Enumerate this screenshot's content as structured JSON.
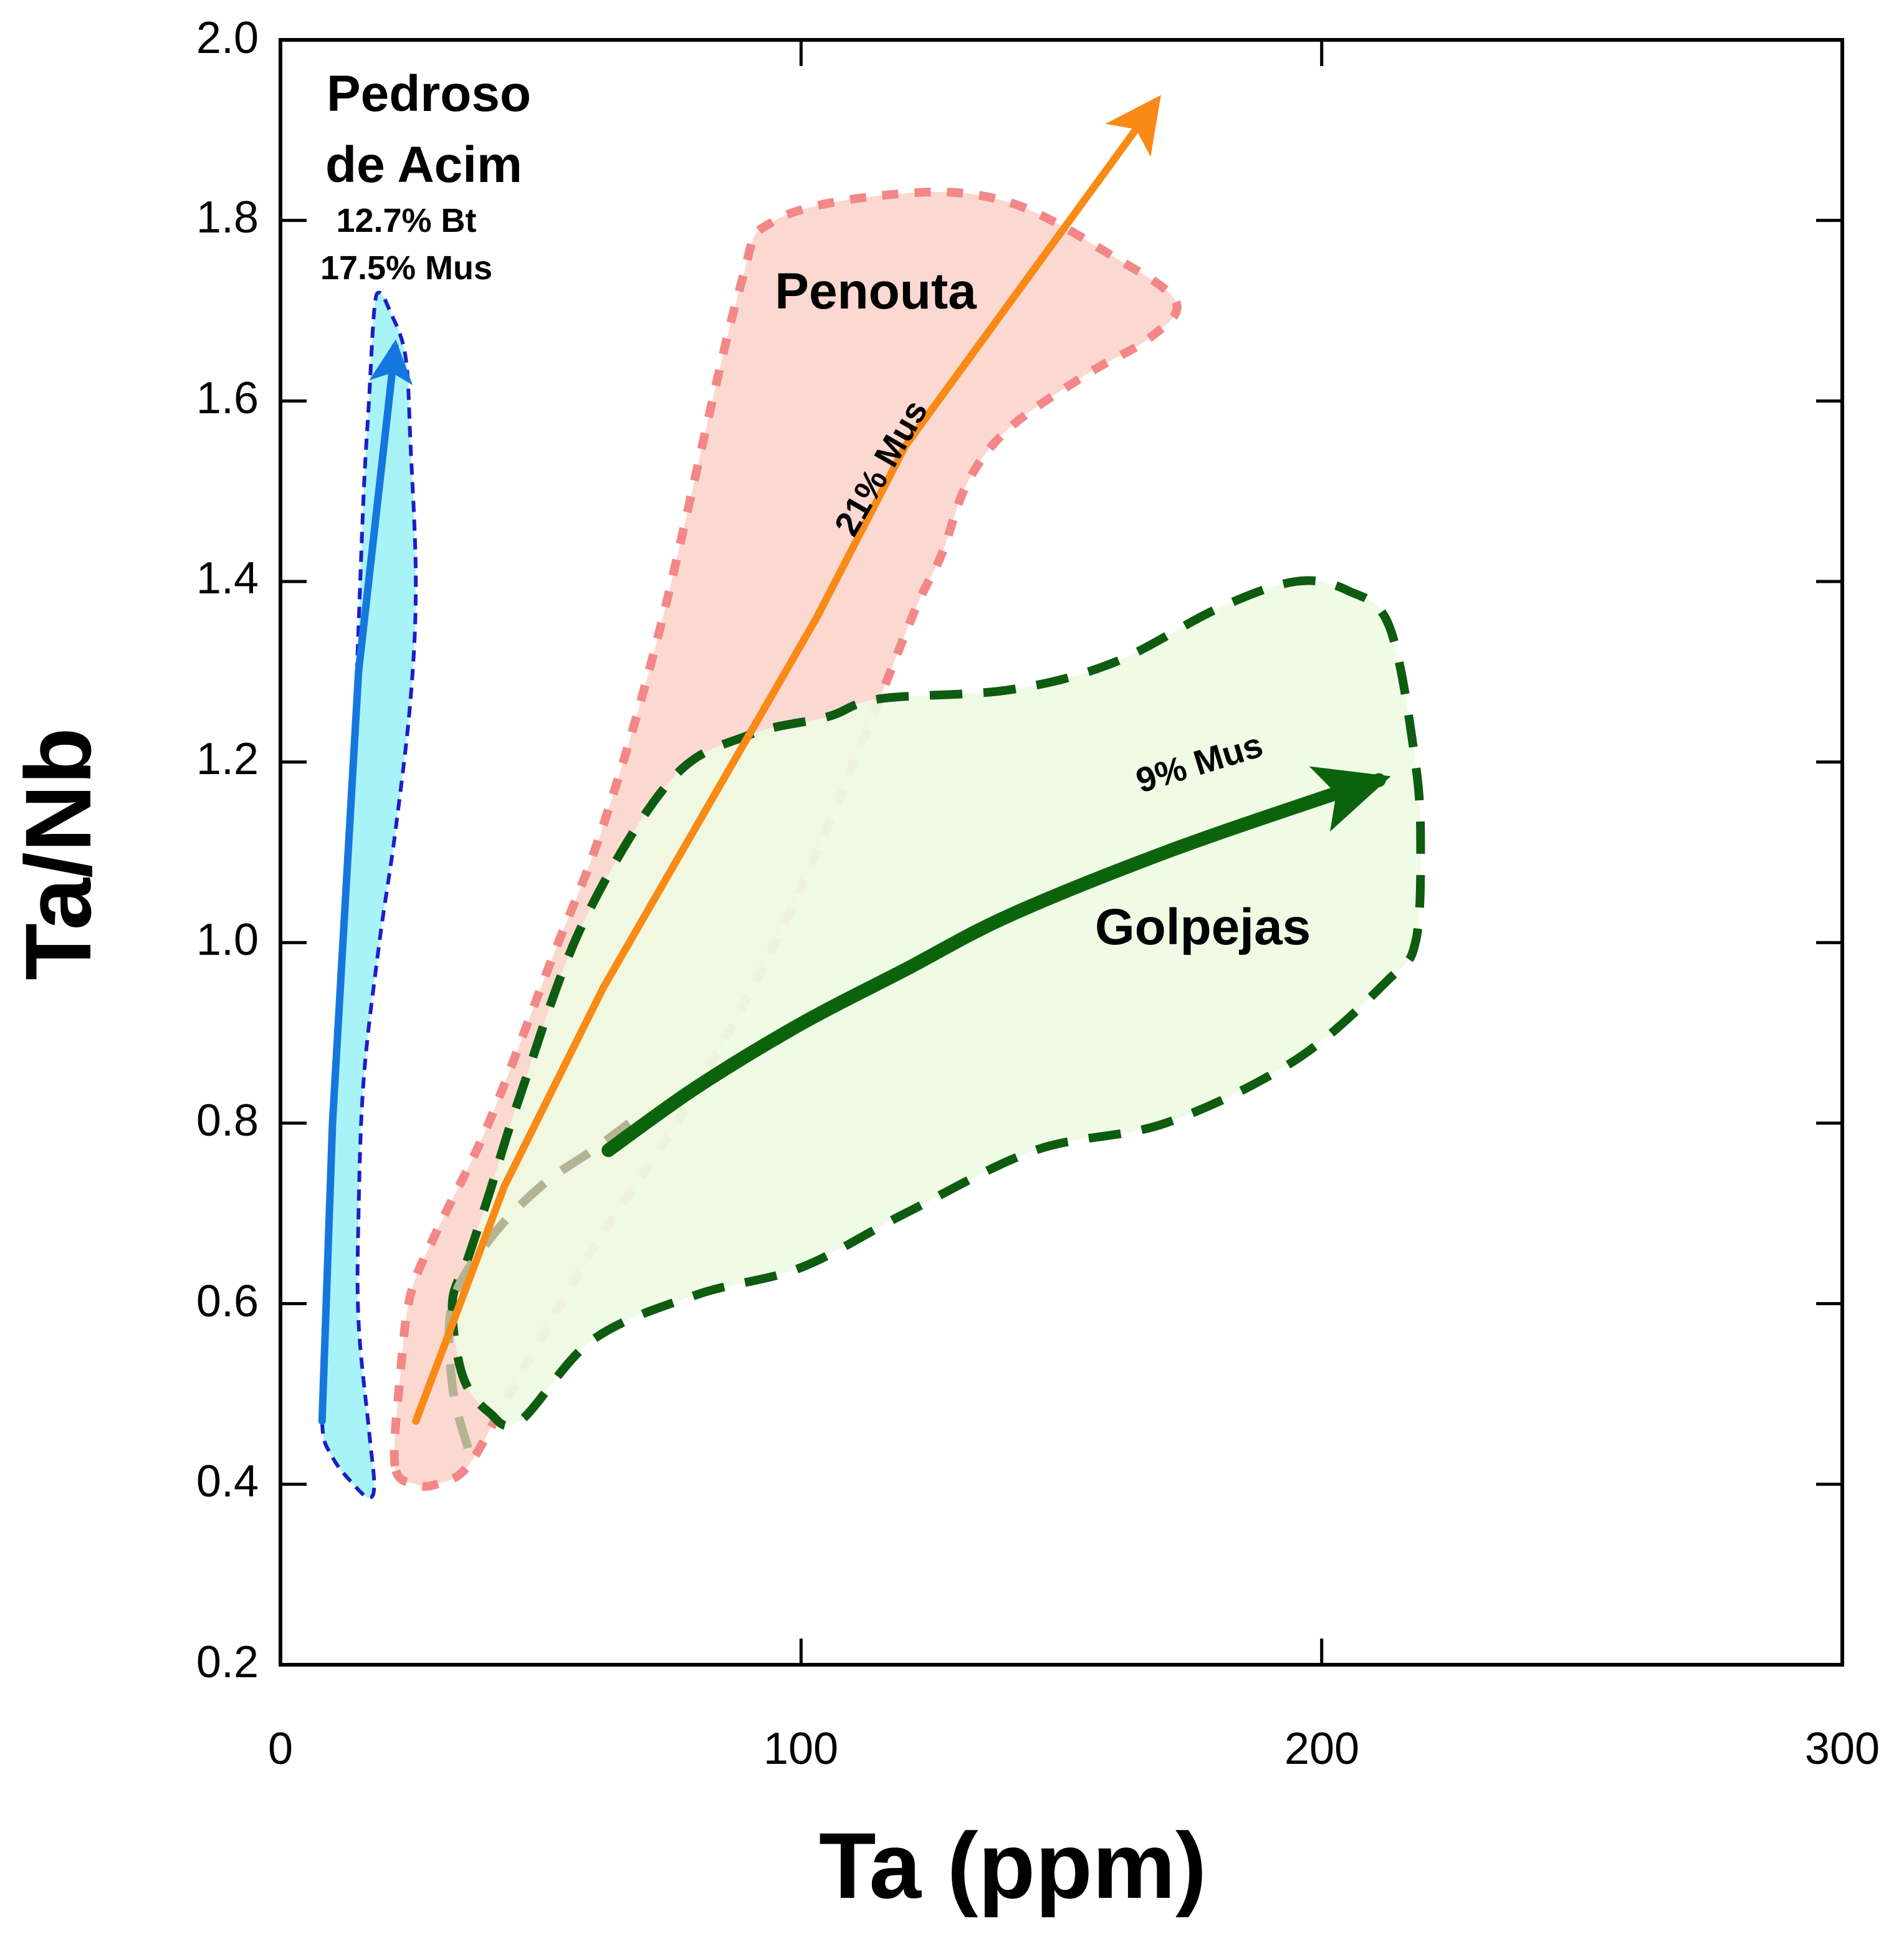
{
  "chart_data": {
    "type": "scatter",
    "title": "",
    "xlabel": "Ta (ppm)",
    "ylabel": "Ta/Nb",
    "xlim": [
      0,
      300
    ],
    "ylim": [
      0.2,
      2.0
    ],
    "xticks": [
      "0",
      "100",
      "200",
      "300"
    ],
    "yticks": [
      "0.2",
      "0.4",
      "0.6",
      "0.8",
      "1.0",
      "1.2",
      "1.4",
      "1.6",
      "1.8",
      "2.0"
    ],
    "grid": false,
    "colors": {
      "pedroso_fill": "#a8f3f7",
      "pedroso_border": "#1d1dc8",
      "pedroso_arrow": "#1577de",
      "penouta_fill": "#fbd9d1",
      "penouta_border": "#f38787",
      "penouta_arrow": "#f98a16",
      "golpejas_fill": "#effbe3",
      "golpejas_border": "#0d5c10",
      "golpejas_arrow": "#0b640b",
      "overlap_border": "#b4b493"
    },
    "fields": [
      {
        "name": "Pedroso de Acim",
        "label_line1": "Pedroso",
        "label_line2": "de Acim",
        "note_line1": "12.7% Bt",
        "note_line2": "17.5% Mus",
        "outline": [
          [
            8,
            0.47
          ],
          [
            9,
            0.6
          ],
          [
            10,
            0.75
          ],
          [
            11,
            0.9
          ],
          [
            12,
            1.0
          ],
          [
            14,
            1.2
          ],
          [
            15,
            1.35
          ],
          [
            16,
            1.5
          ],
          [
            17,
            1.6
          ],
          [
            18,
            1.7
          ],
          [
            19,
            1.72
          ],
          [
            21,
            1.7
          ],
          [
            24,
            1.65
          ],
          [
            25,
            1.55
          ],
          [
            26,
            1.4
          ],
          [
            25,
            1.27
          ],
          [
            22,
            1.12
          ],
          [
            19,
            1.0
          ],
          [
            16,
            0.85
          ],
          [
            15,
            0.7
          ],
          [
            15,
            0.58
          ],
          [
            17,
            0.46
          ],
          [
            18,
            0.4
          ],
          [
            17,
            0.385
          ],
          [
            14,
            0.4
          ],
          [
            10,
            0.43
          ]
        ],
        "trend": [
          [
            8,
            0.47
          ],
          [
            10,
            0.8
          ],
          [
            15,
            1.3
          ],
          [
            22,
            1.66
          ]
        ]
      },
      {
        "name": "Penouta",
        "label": "Penouta",
        "note": "21% Mus",
        "outline": [
          [
            22,
            0.42
          ],
          [
            23,
            0.52
          ],
          [
            25,
            0.61
          ],
          [
            30,
            0.68
          ],
          [
            40,
            0.8
          ],
          [
            52,
            0.98
          ],
          [
            62,
            1.13
          ],
          [
            73,
            1.35
          ],
          [
            88,
            1.72
          ],
          [
            95,
            1.8
          ],
          [
            120,
            1.83
          ],
          [
            140,
            1.82
          ],
          [
            160,
            1.76
          ],
          [
            172,
            1.71
          ],
          [
            167,
            1.67
          ],
          [
            155,
            1.63
          ],
          [
            140,
            1.57
          ],
          [
            132,
            1.51
          ],
          [
            127,
            1.43
          ],
          [
            122,
            1.37
          ],
          [
            113,
            1.24
          ],
          [
            100,
            1.06
          ],
          [
            87,
            0.91
          ],
          [
            75,
            0.79
          ],
          [
            60,
            0.66
          ],
          [
            44,
            0.5
          ],
          [
            36,
            0.42
          ],
          [
            30,
            0.4
          ],
          [
            26,
            0.4
          ]
        ],
        "trend": [
          [
            26,
            0.47
          ],
          [
            43,
            0.73
          ],
          [
            62,
            0.95
          ],
          [
            103,
            1.36
          ],
          [
            120,
            1.55
          ],
          [
            168,
            1.93
          ]
        ]
      },
      {
        "name": "Golpejas",
        "label": "Golpejas",
        "note": "9% Mus",
        "outline": [
          [
            33,
            0.6
          ],
          [
            35,
            0.52
          ],
          [
            40,
            0.48
          ],
          [
            46,
            0.47
          ],
          [
            60,
            0.56
          ],
          [
            80,
            0.61
          ],
          [
            100,
            0.64
          ],
          [
            120,
            0.7
          ],
          [
            145,
            0.77
          ],
          [
            170,
            0.8
          ],
          [
            195,
            0.87
          ],
          [
            213,
            0.96
          ],
          [
            218,
            1.0
          ],
          [
            219,
            1.1
          ],
          [
            218,
            1.2
          ],
          [
            213,
            1.35
          ],
          [
            205,
            1.39
          ],
          [
            195,
            1.4
          ],
          [
            180,
            1.37
          ],
          [
            160,
            1.31
          ],
          [
            140,
            1.28
          ],
          [
            115,
            1.27
          ],
          [
            105,
            1.25
          ],
          [
            90,
            1.23
          ],
          [
            75,
            1.18
          ],
          [
            58,
            1.02
          ],
          [
            46,
            0.83
          ],
          [
            40,
            0.72
          ],
          [
            36,
            0.65
          ]
        ],
        "overlap": [
          [
            36,
            0.44
          ],
          [
            33,
            0.51
          ],
          [
            33,
            0.6
          ],
          [
            40,
            0.67
          ],
          [
            50,
            0.73
          ],
          [
            60,
            0.77
          ],
          [
            67,
            0.8
          ]
        ],
        "trend": [
          [
            63,
            0.77
          ],
          [
            80,
            0.84
          ],
          [
            100,
            0.91
          ],
          [
            120,
            0.97
          ],
          [
            140,
            1.03
          ],
          [
            170,
            1.1
          ],
          [
            200,
            1.16
          ],
          [
            211,
            1.18
          ]
        ]
      }
    ]
  }
}
